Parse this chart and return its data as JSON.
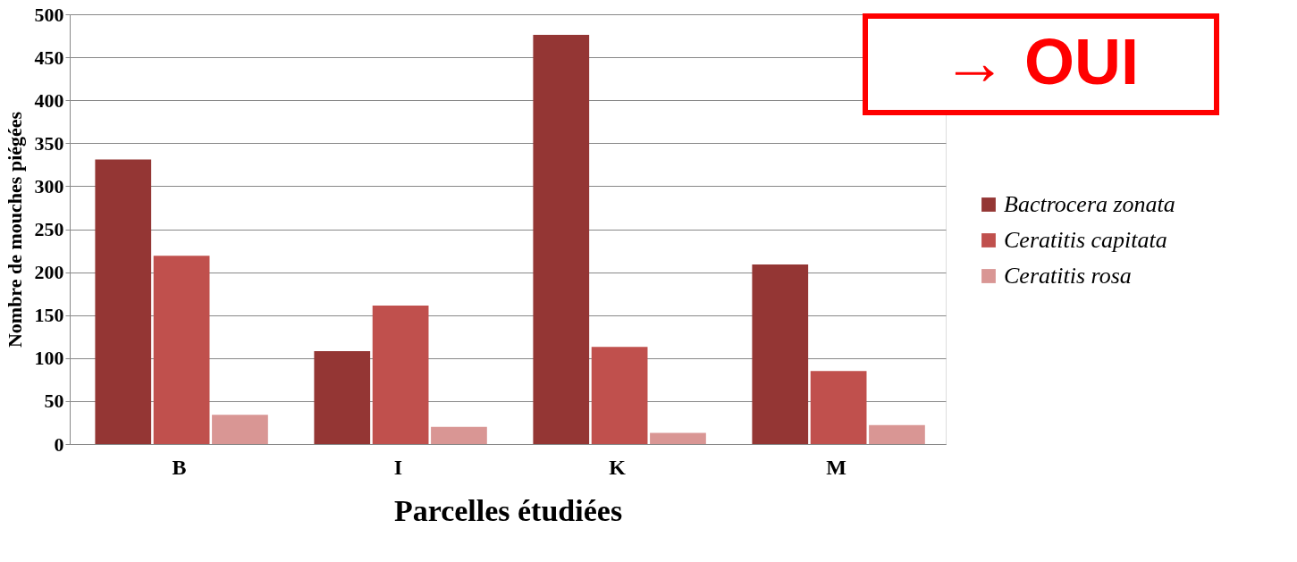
{
  "chart_data": {
    "type": "bar",
    "xlabel": "Parcelles étudiées",
    "ylabel": "Nombre de mouches piégées",
    "categories": [
      "B",
      "I",
      "K",
      "M"
    ],
    "series": [
      {
        "name": "Bactrocera zonata",
        "color": "#943634",
        "values": [
          331,
          108,
          476,
          209
        ]
      },
      {
        "name": "Ceratitis capitata",
        "color": "#c0504d",
        "values": [
          219,
          161,
          113,
          85
        ]
      },
      {
        "name": "Ceratitis rosa",
        "color": "#d99694",
        "values": [
          34,
          20,
          13,
          22
        ]
      }
    ],
    "ylim": [
      0,
      500
    ],
    "yticks": [
      0,
      50,
      100,
      150,
      200,
      250,
      300,
      350,
      400,
      450,
      500
    ],
    "grid": "y",
    "legend": "right",
    "annotations": [
      "→ OUI"
    ]
  }
}
